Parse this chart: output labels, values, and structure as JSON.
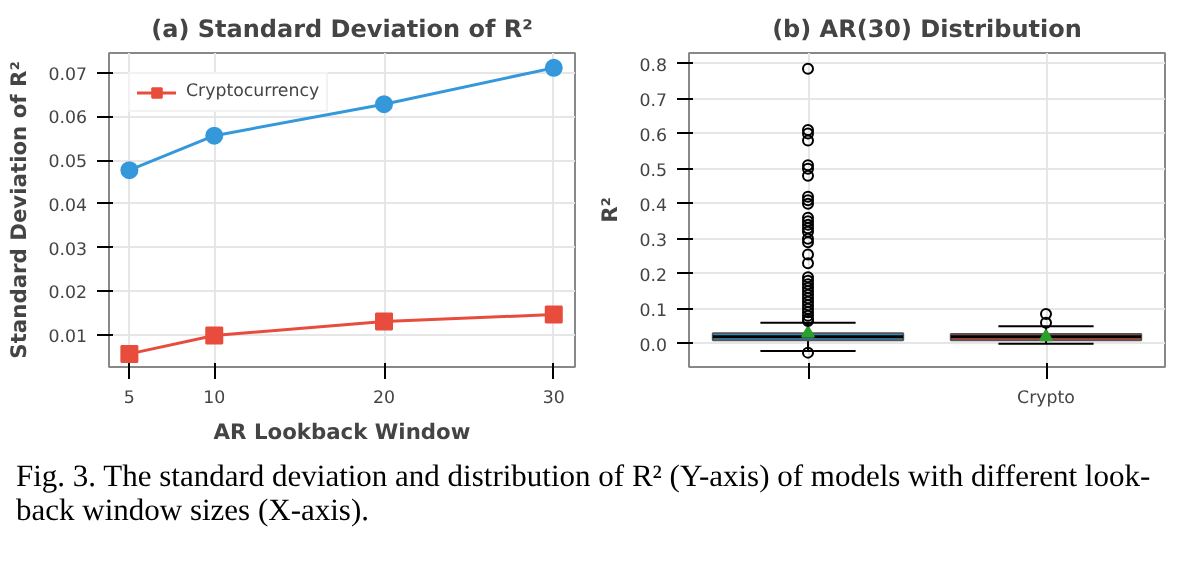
{
  "chart_data": [
    {
      "type": "line",
      "title": "(a) Standard Deviation of R²",
      "xlabel": "AR Lookback Window",
      "ylabel": "Standard Deviation of R²",
      "x": [
        5,
        10,
        20,
        30
      ],
      "series": [
        {
          "color": "#3498db",
          "marker": "circle",
          "values": [
            0.0477,
            0.0556,
            0.0628,
            0.0711
          ]
        },
        {
          "name": "Cryptocurrency",
          "color": "#e74c3c",
          "marker": "square",
          "values": [
            0.0057,
            0.0099,
            0.0131,
            0.0147
          ]
        }
      ],
      "xlim": [
        3.8,
        31.25
      ],
      "xticks": [
        5,
        10,
        20,
        30
      ],
      "ylim": [
        0.0027,
        0.0745
      ],
      "yticks": [
        0.01,
        0.02,
        0.03,
        0.04,
        0.05,
        0.06,
        0.07
      ],
      "grid": true,
      "legend": "top left",
      "annotations": [
        "Fig. 3.  The standard deviation and distribution of R² (Y-axis) of models with different look-back window sizes (X-axis)."
      ]
    },
    {
      "type": "box",
      "title": "(b) AR(30) Distribution",
      "ylabel": "R²",
      "categories": [
        null,
        "Crypto"
      ],
      "colors": [
        "#3498db",
        "#e74c3c"
      ],
      "boxes": [
        {
          "low": -0.02,
          "q1": 0.01,
          "median": 0.02,
          "q3": 0.03,
          "high": 0.06,
          "mean": 0.03,
          "outliers": [
            -0.025,
            0.065,
            0.07,
            0.08,
            0.09,
            0.1,
            0.11,
            0.12,
            0.13,
            0.14,
            0.15,
            0.16,
            0.17,
            0.18,
            0.19,
            0.23,
            0.255,
            0.29,
            0.3,
            0.32,
            0.33,
            0.34,
            0.35,
            0.36,
            0.4,
            0.41,
            0.42,
            0.48,
            0.5,
            0.51,
            0.58,
            0.6,
            0.61,
            0.785
          ]
        },
        {
          "low": 0.0,
          "q1": 0.01,
          "median": 0.02,
          "q3": 0.028,
          "high": 0.05,
          "mean": 0.02,
          "outliers": [
            0.06,
            0.085
          ]
        }
      ],
      "ylim": [
        -0.066,
        0.83
      ],
      "yticks": [
        {
          "value": 0,
          "label": "0.0"
        },
        0.1,
        0.2,
        0.3,
        0.4,
        0.5,
        0.6,
        0.7,
        0.8
      ],
      "grid": true
    }
  ]
}
